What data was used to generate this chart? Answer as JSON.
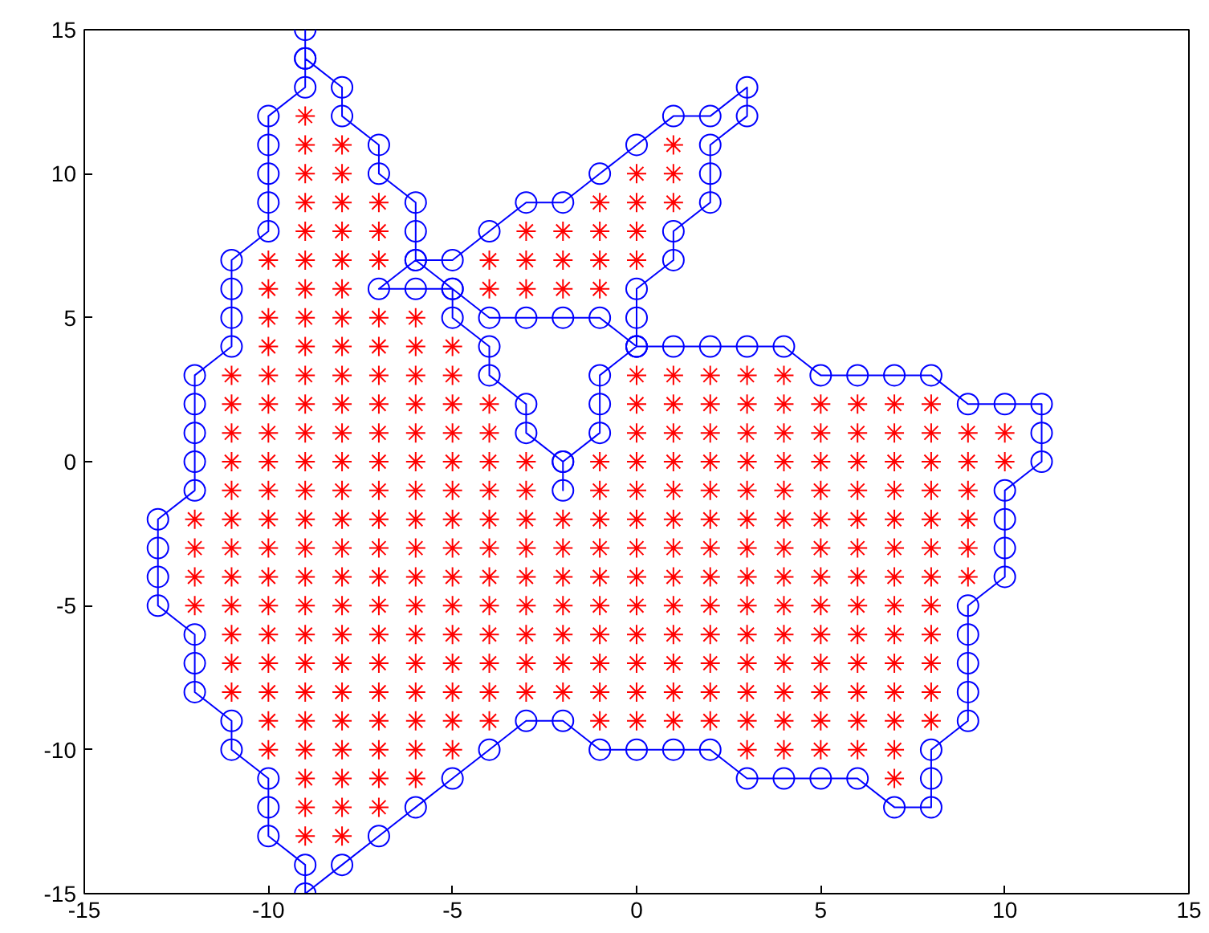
{
  "chart_data": {
    "type": "scatter",
    "xlim": [
      -15,
      15
    ],
    "ylim": [
      -15,
      15
    ],
    "xticks": [
      -15,
      -10,
      -5,
      0,
      5,
      10,
      15
    ],
    "yticks": [
      -15,
      -10,
      -5,
      0,
      5,
      10,
      15
    ],
    "grid": false,
    "series": [
      {
        "marker": "circle",
        "line_style": "solid",
        "color": "#0000ff",
        "x": [
          0,
          1,
          2,
          3,
          4,
          5,
          6,
          7,
          8,
          9,
          10,
          11,
          11,
          11,
          10,
          10,
          10,
          10,
          9,
          9,
          9,
          9,
          9,
          8,
          8,
          8,
          7,
          6,
          5,
          4,
          3,
          2,
          1,
          0,
          -1,
          -2,
          -3,
          -4,
          -5,
          -6,
          -7,
          -8,
          -9,
          -9,
          -10,
          -10,
          -10,
          -11,
          -11,
          -12,
          -12,
          -12,
          -13,
          -13,
          -13,
          -13,
          -12,
          -12,
          -12,
          -12,
          -12,
          -11,
          -11,
          -11,
          -11,
          -10,
          -10,
          -10,
          -10,
          -10,
          -9,
          -9,
          -9,
          -9,
          -8,
          -8,
          -7,
          -7,
          -6,
          -6,
          -6,
          -7,
          -6,
          -5,
          -6,
          -5,
          -4,
          -3,
          -2,
          -1,
          0,
          1,
          2,
          3,
          3,
          2,
          2,
          2,
          1,
          1,
          0,
          0,
          0,
          -1,
          -2,
          -3,
          -4,
          -5,
          -5,
          -4,
          -4,
          -3,
          -3,
          -2,
          -2,
          -2,
          -1,
          -1,
          -1,
          0
        ],
        "values": [
          4,
          4,
          4,
          4,
          4,
          3,
          3,
          3,
          3,
          2,
          2,
          2,
          1,
          0,
          -1,
          -2,
          -3,
          -4,
          -5,
          -6,
          -7,
          -8,
          -9,
          -10,
          -11,
          -12,
          -12,
          -11,
          -11,
          -11,
          -11,
          -10,
          -10,
          -10,
          -10,
          -9,
          -9,
          -10,
          -11,
          -12,
          -13,
          -14,
          -15,
          -14,
          -13,
          -12,
          -11,
          -10,
          -9,
          -8,
          -7,
          -6,
          -5,
          -4,
          -3,
          -2,
          -1,
          0,
          1,
          2,
          3,
          4,
          5,
          6,
          7,
          8,
          9,
          10,
          11,
          12,
          13,
          14,
          15,
          14,
          13,
          12,
          11,
          10,
          9,
          8,
          7,
          6,
          6,
          6,
          7,
          7,
          8,
          9,
          9,
          10,
          11,
          12,
          12,
          13,
          12,
          11,
          10,
          9,
          8,
          7,
          6,
          5,
          4,
          5,
          5,
          5,
          5,
          6,
          5,
          4,
          3,
          2,
          1,
          0,
          -1,
          0,
          1,
          2,
          3,
          4
        ]
      },
      {
        "type": "scatter",
        "marker": "cross",
        "color": "#ff0000",
        "x": [
          -9,
          -9,
          -8,
          1,
          -9,
          -8,
          0,
          1,
          -9,
          -8,
          -7,
          -1,
          0,
          1,
          -9,
          -8,
          -7,
          -3,
          -2,
          -1,
          0,
          -10,
          -9,
          -8,
          -7,
          -4,
          -3,
          -2,
          -1,
          0,
          -10,
          -9,
          -8,
          -4,
          -3,
          -2,
          -1,
          -10,
          -9,
          -8,
          -7,
          -6,
          -10,
          -9,
          -8,
          -7,
          -6,
          -5,
          -11,
          -10,
          -9,
          -8,
          -7,
          -6,
          -5,
          0,
          1,
          2,
          3,
          4,
          -11,
          -10,
          -9,
          -8,
          -7,
          -6,
          -5,
          -4,
          0,
          1,
          2,
          3,
          4,
          5,
          6,
          7,
          8,
          -11,
          -10,
          -9,
          -8,
          -7,
          -6,
          -5,
          -4,
          0,
          1,
          2,
          3,
          4,
          5,
          6,
          7,
          8,
          9,
          10,
          -11,
          -10,
          -9,
          -8,
          -7,
          -6,
          -5,
          -4,
          -3,
          -1,
          0,
          1,
          2,
          3,
          4,
          5,
          6,
          7,
          8,
          9,
          10,
          -11,
          -10,
          -9,
          -8,
          -7,
          -6,
          -5,
          -4,
          -3,
          -1,
          0,
          1,
          2,
          3,
          4,
          5,
          6,
          7,
          8,
          9,
          -12,
          -11,
          -10,
          -9,
          -8,
          -7,
          -6,
          -5,
          -4,
          -3,
          -2,
          -1,
          0,
          1,
          2,
          3,
          4,
          5,
          6,
          7,
          8,
          9,
          -12,
          -11,
          -10,
          -9,
          -8,
          -7,
          -6,
          -5,
          -4,
          -3,
          -2,
          -1,
          0,
          1,
          2,
          3,
          4,
          5,
          6,
          7,
          8,
          9,
          -12,
          -11,
          -10,
          -9,
          -8,
          -7,
          -6,
          -5,
          -4,
          -3,
          -2,
          -1,
          0,
          1,
          2,
          3,
          4,
          5,
          6,
          7,
          8,
          9,
          -12,
          -11,
          -10,
          -9,
          -8,
          -7,
          -6,
          -5,
          -4,
          -3,
          -2,
          -1,
          0,
          1,
          2,
          3,
          4,
          5,
          6,
          7,
          8,
          -11,
          -10,
          -9,
          -8,
          -7,
          -6,
          -5,
          -4,
          -3,
          -2,
          -1,
          0,
          1,
          2,
          3,
          4,
          5,
          6,
          7,
          8,
          -11,
          -10,
          -9,
          -8,
          -7,
          -6,
          -5,
          -4,
          -3,
          -2,
          -1,
          0,
          1,
          2,
          3,
          4,
          5,
          6,
          7,
          8,
          -11,
          -10,
          -9,
          -8,
          -7,
          -6,
          -5,
          -4,
          -3,
          -2,
          -1,
          0,
          1,
          2,
          3,
          4,
          5,
          6,
          7,
          8,
          -10,
          -9,
          -8,
          -7,
          -6,
          -5,
          -4,
          -1,
          0,
          1,
          2,
          3,
          4,
          5,
          6,
          7,
          8,
          -10,
          -9,
          -8,
          -7,
          -6,
          -5,
          3,
          4,
          5,
          6,
          7,
          -9,
          -8,
          -7,
          -6,
          7,
          -9,
          -8,
          -7,
          -9,
          -8
        ],
        "values": [
          12,
          11,
          11,
          11,
          10,
          10,
          10,
          10,
          9,
          9,
          9,
          9,
          9,
          9,
          8,
          8,
          8,
          8,
          8,
          8,
          8,
          7,
          7,
          7,
          7,
          7,
          7,
          7,
          7,
          7,
          6,
          6,
          6,
          6,
          6,
          6,
          6,
          5,
          5,
          5,
          5,
          5,
          4,
          4,
          4,
          4,
          4,
          4,
          3,
          3,
          3,
          3,
          3,
          3,
          3,
          3,
          3,
          3,
          3,
          3,
          2,
          2,
          2,
          2,
          2,
          2,
          2,
          2,
          2,
          2,
          2,
          2,
          2,
          2,
          2,
          2,
          2,
          1,
          1,
          1,
          1,
          1,
          1,
          1,
          1,
          1,
          1,
          1,
          1,
          1,
          1,
          1,
          1,
          1,
          1,
          1,
          0,
          0,
          0,
          0,
          0,
          0,
          0,
          0,
          0,
          0,
          0,
          0,
          0,
          0,
          0,
          0,
          0,
          0,
          0,
          0,
          0,
          -1,
          -1,
          -1,
          -1,
          -1,
          -1,
          -1,
          -1,
          -1,
          -1,
          -1,
          -1,
          -1,
          -1,
          -1,
          -1,
          -1,
          -1,
          -1,
          -1,
          -2,
          -2,
          -2,
          -2,
          -2,
          -2,
          -2,
          -2,
          -2,
          -2,
          -2,
          -2,
          -2,
          -2,
          -2,
          -2,
          -2,
          -2,
          -2,
          -2,
          -2,
          -2,
          -3,
          -3,
          -3,
          -3,
          -3,
          -3,
          -3,
          -3,
          -3,
          -3,
          -3,
          -3,
          -3,
          -3,
          -3,
          -3,
          -3,
          -3,
          -3,
          -3,
          -3,
          -3,
          -4,
          -4,
          -4,
          -4,
          -4,
          -4,
          -4,
          -4,
          -4,
          -4,
          -4,
          -4,
          -4,
          -4,
          -4,
          -4,
          -4,
          -4,
          -4,
          -4,
          -4,
          -4,
          -5,
          -5,
          -5,
          -5,
          -5,
          -5,
          -5,
          -5,
          -5,
          -5,
          -5,
          -5,
          -5,
          -5,
          -5,
          -5,
          -5,
          -5,
          -5,
          -5,
          -5,
          -6,
          -6,
          -6,
          -6,
          -6,
          -6,
          -6,
          -6,
          -6,
          -6,
          -6,
          -6,
          -6,
          -6,
          -6,
          -6,
          -6,
          -6,
          -6,
          -6,
          -7,
          -7,
          -7,
          -7,
          -7,
          -7,
          -7,
          -7,
          -7,
          -7,
          -7,
          -7,
          -7,
          -7,
          -7,
          -7,
          -7,
          -7,
          -7,
          -7,
          -8,
          -8,
          -8,
          -8,
          -8,
          -8,
          -8,
          -8,
          -8,
          -8,
          -8,
          -8,
          -8,
          -8,
          -8,
          -8,
          -8,
          -8,
          -8,
          -8,
          -9,
          -9,
          -9,
          -9,
          -9,
          -9,
          -9,
          -9,
          -9,
          -9,
          -9,
          -9,
          -9,
          -9,
          -9,
          -9,
          -9,
          -10,
          -10,
          -10,
          -10,
          -10,
          -10,
          -10,
          -10,
          -10,
          -10,
          -10,
          -11,
          -11,
          -11,
          -11,
          -11,
          -12,
          -12,
          -12,
          -13,
          -13
        ]
      }
    ]
  }
}
